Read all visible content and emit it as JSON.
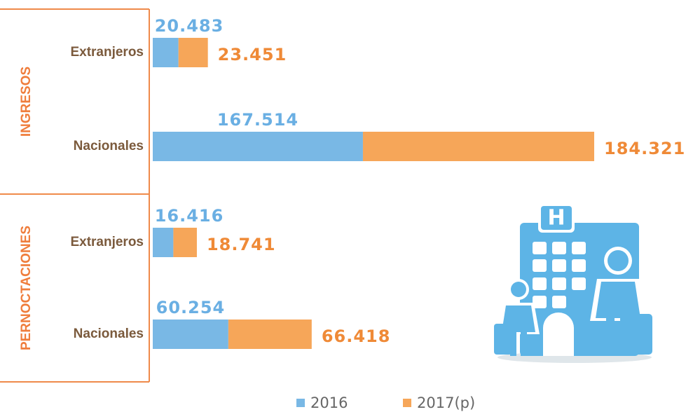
{
  "chart_data": {
    "type": "bar",
    "groups": [
      "INGRESOS",
      "PERNOCTACIONES"
    ],
    "categories": [
      "Extranjeros",
      "Nacionales",
      "Extranjeros",
      "Nacionales"
    ],
    "series": [
      {
        "name": "2016",
        "color": "#79b8e5",
        "label_color": "#6aafe3",
        "values": [
          20483,
          167514,
          16416,
          60254
        ],
        "value_labels": [
          "20.483",
          "167.514",
          "16.416",
          "60.254"
        ]
      },
      {
        "name": "2017(p)",
        "color": "#f6a659",
        "label_color": "#ef8a37",
        "values": [
          23451,
          184321,
          18741,
          66418
        ],
        "value_labels": [
          "23.451",
          "184.321",
          "18.741",
          "66.418"
        ]
      }
    ]
  }
}
